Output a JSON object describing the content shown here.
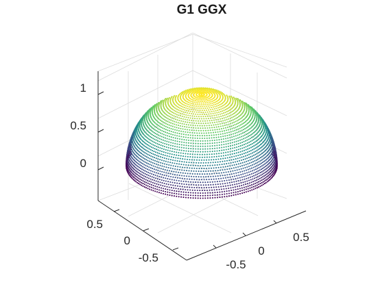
{
  "chart_data": {
    "type": "surface3d",
    "title": "G1 GGX",
    "style": "point-cloud",
    "colormap": "viridis",
    "colormap_stops": [
      "#440154",
      "#3b528b",
      "#21918c",
      "#5ec962",
      "#fde725"
    ],
    "x_ticks": [
      "-0.5",
      "0",
      "0.5"
    ],
    "y_ticks": [
      "-0.5",
      "0",
      "0.5"
    ],
    "z_ticks": [
      "0",
      "0.5",
      "1"
    ],
    "xlim": [
      -1,
      1
    ],
    "ylim": [
      -1,
      1
    ],
    "zlim": [
      -0.4,
      1.2
    ],
    "surface": "hemisphere of radius 1, z from -0.05 to 1"
  }
}
